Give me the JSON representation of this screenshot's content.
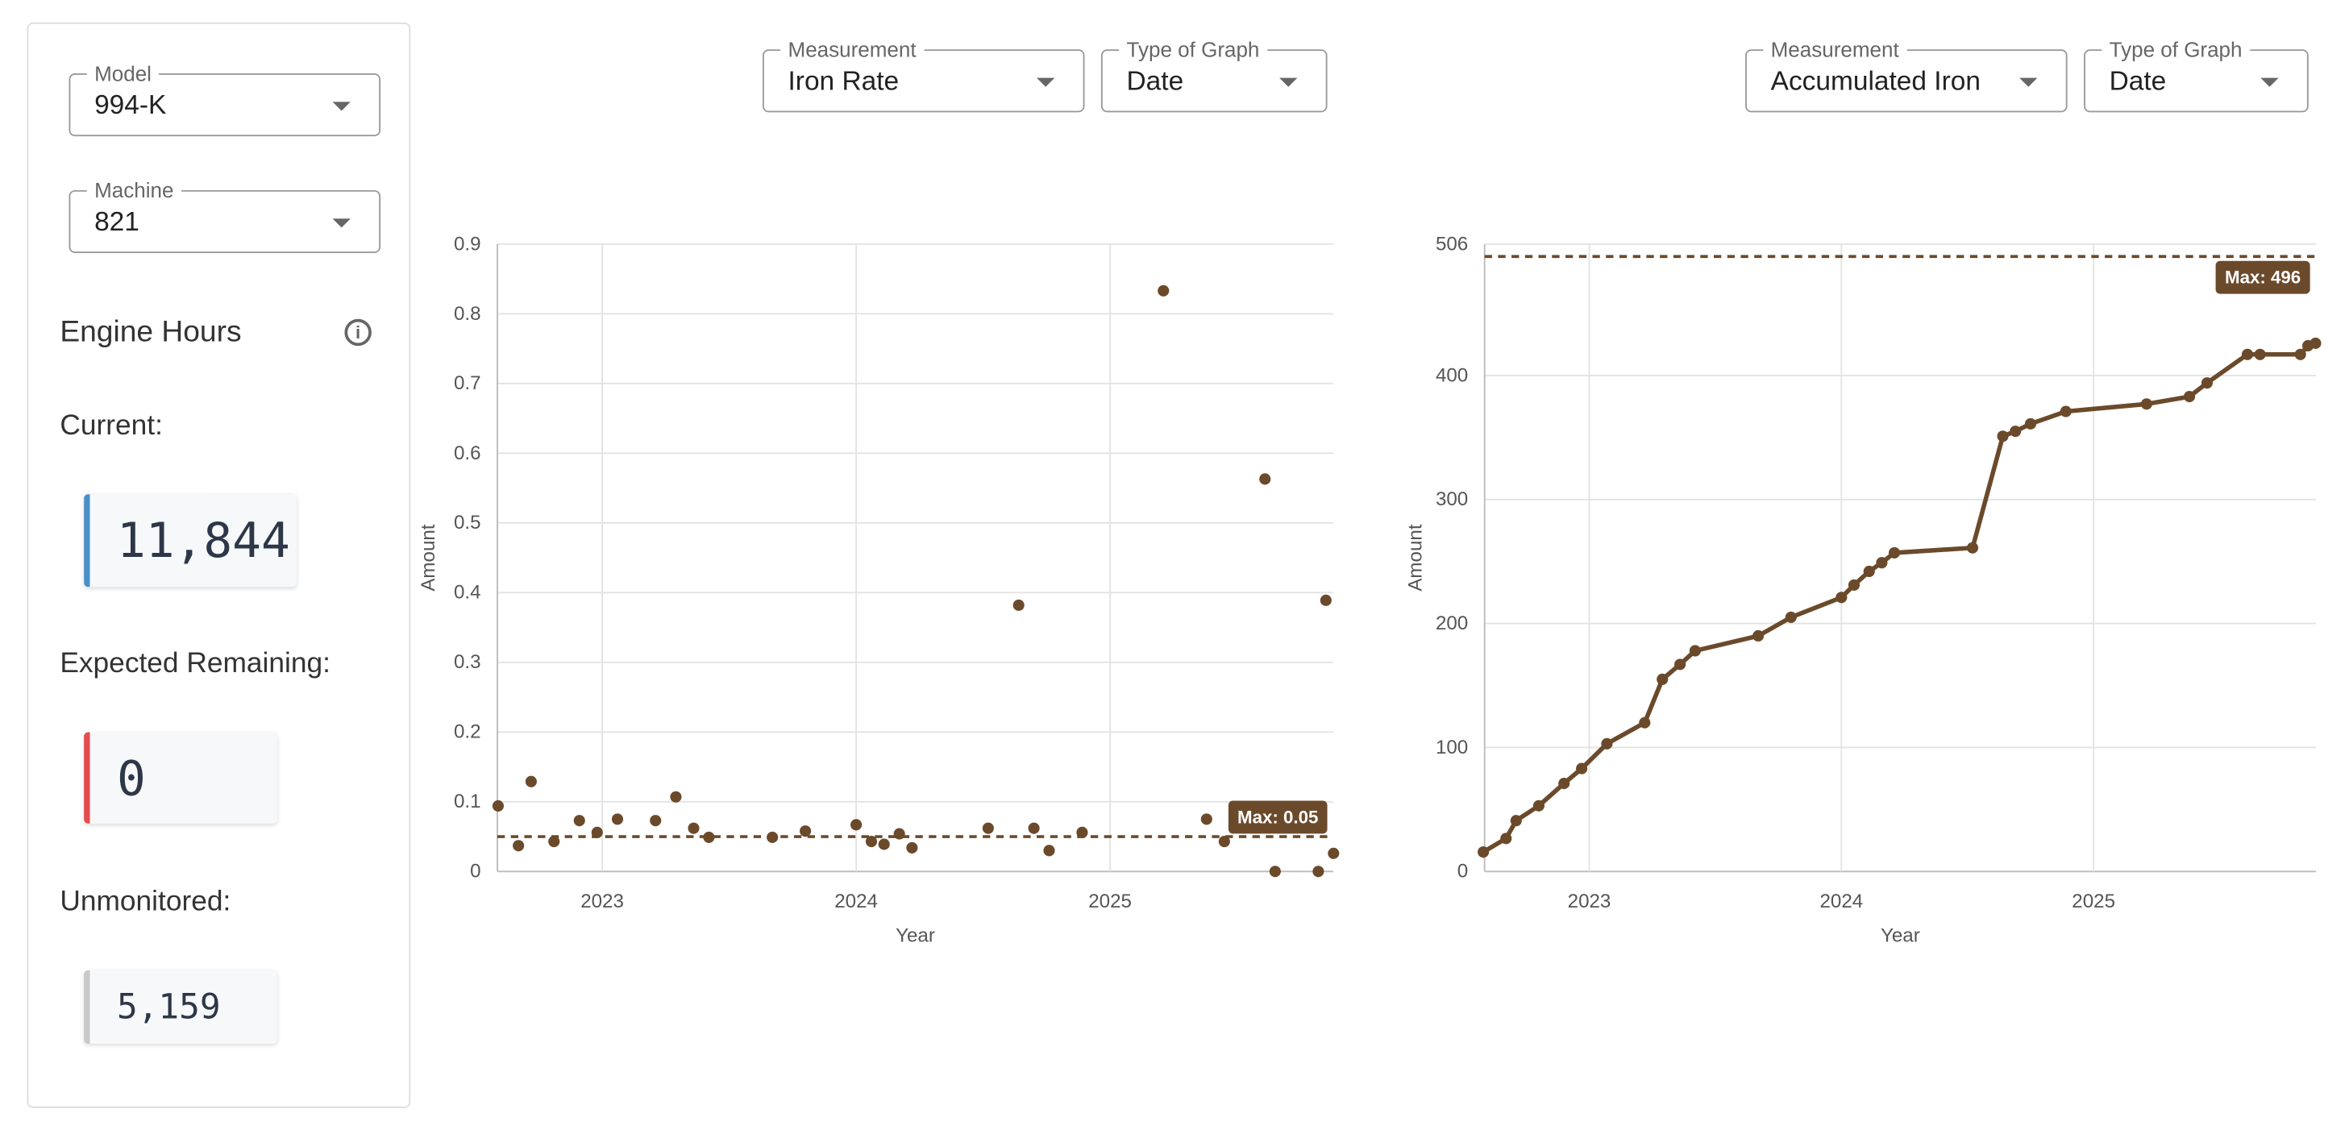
{
  "panel": {
    "model_select": {
      "label": "Model",
      "value": "994-K"
    },
    "machine_select": {
      "label": "Machine",
      "value": "821"
    },
    "heading": "Engine Hours",
    "current": {
      "label": "Current:",
      "value": "11,844"
    },
    "expected_remaining": {
      "label": "Expected Remaining:",
      "value": "0"
    },
    "unmonitored": {
      "label": "Unmonitored:",
      "value": "5,159"
    }
  },
  "controls": [
    {
      "measurement_label": "Measurement",
      "measurement": "Iron Rate",
      "graph_type_label": "Type of Graph",
      "graph_type": "Date"
    },
    {
      "measurement_label": "Measurement",
      "measurement": "Accumulated Iron",
      "graph_type_label": "Type of Graph",
      "graph_type": "Date"
    }
  ],
  "chart_data": [
    {
      "type": "scatter",
      "x_label": "Year",
      "y_label": "Amount",
      "color": "#6b4a2b",
      "grid": true,
      "xlim": [
        2022.587,
        2025.879
      ],
      "xticks": [
        2023,
        2024,
        2025
      ],
      "ylim": [
        0,
        0.9
      ],
      "yticks": [
        0,
        0.1,
        0.2,
        0.3,
        0.4,
        0.5,
        0.6,
        0.7,
        0.8,
        0.9
      ],
      "x": [
        2022.59,
        2022.67,
        2022.72,
        2022.81,
        2022.91,
        2022.98,
        2023.06,
        2023.21,
        2023.29,
        2023.36,
        2023.42,
        2023.67,
        2023.8,
        2024.0,
        2024.06,
        2024.11,
        2024.17,
        2024.22,
        2024.52,
        2024.64,
        2024.7,
        2024.76,
        2024.89,
        2025.21,
        2025.38,
        2025.45,
        2025.61,
        2025.65,
        2025.82,
        2025.85,
        2025.88
      ],
      "values": [
        0.094,
        0.037,
        0.129,
        0.043,
        0.073,
        0.056,
        0.075,
        0.073,
        0.107,
        0.062,
        0.049,
        0.049,
        0.058,
        0.067,
        0.043,
        0.039,
        0.054,
        0.034,
        0.062,
        0.382,
        0.062,
        0.03,
        0.056,
        0.833,
        0.075,
        0.043,
        0.563,
        0,
        0,
        0.389,
        0.026
      ],
      "max_line": {
        "value": 0.05,
        "label": "Max: 0.05"
      }
    },
    {
      "type": "line",
      "x_label": "Year",
      "y_label": "Amount",
      "color": "#6b4a2b",
      "grid": true,
      "xlim": [
        2022.585,
        2025.882
      ],
      "xticks": [
        2023,
        2024,
        2025
      ],
      "ylim": [
        0,
        506
      ],
      "yticks": [
        0,
        100,
        200,
        300,
        400,
        506
      ],
      "x": [
        2022.58,
        2022.67,
        2022.71,
        2022.8,
        2022.9,
        2022.97,
        2023.07,
        2023.22,
        2023.29,
        2023.36,
        2023.42,
        2023.67,
        2023.8,
        2024.0,
        2024.05,
        2024.11,
        2024.16,
        2024.21,
        2024.52,
        2024.64,
        2024.69,
        2024.75,
        2024.89,
        2025.21,
        2025.38,
        2025.45,
        2025.61,
        2025.66,
        2025.82,
        2025.85,
        2025.88
      ],
      "values": [
        15.7,
        26.6,
        41,
        53,
        71,
        83,
        103,
        120,
        155,
        167,
        178,
        190,
        205,
        221,
        231,
        242,
        249,
        257,
        261,
        351,
        355,
        361,
        371,
        377,
        383,
        394,
        417,
        417,
        417,
        424,
        426
      ],
      "max_line": {
        "value": 496,
        "label": "Max: 496"
      }
    }
  ]
}
